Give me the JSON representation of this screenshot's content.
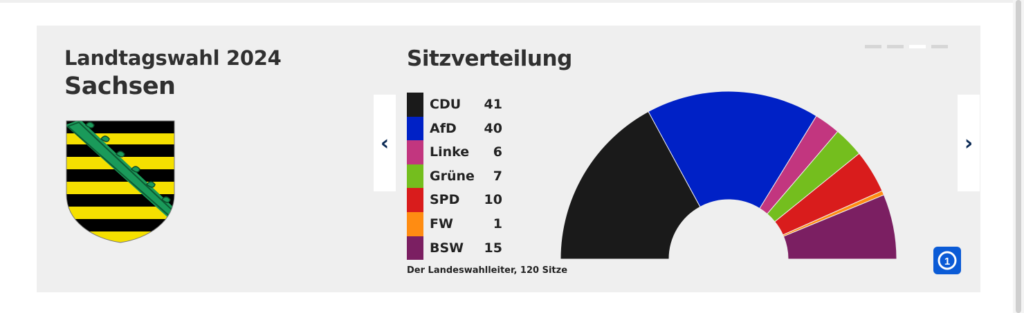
{
  "header": {
    "kicker": "Landtagswahl 2024",
    "state": "Sachsen"
  },
  "coat_of_arms": {
    "icon": "saxony-coat-of-arms",
    "colors": {
      "gold": "#f5e000",
      "black": "#000000",
      "crown": "#1a9a5a"
    }
  },
  "carousel": {
    "prev_label": "‹",
    "next_label": "›",
    "slide_count": 4,
    "active_slide": 3
  },
  "chart_data": {
    "type": "pie",
    "subtype": "parliament-half-donut",
    "title": "Sitzverteilung",
    "total_seats": 120,
    "series": [
      {
        "name": "CDU",
        "value": 41,
        "color": "#1a1a1a"
      },
      {
        "name": "AfD",
        "value": 40,
        "color": "#0021c6"
      },
      {
        "name": "Linke",
        "value": 6,
        "color": "#c2367f"
      },
      {
        "name": "Grüne",
        "value": 7,
        "color": "#74be1e"
      },
      {
        "name": "SPD",
        "value": 10,
        "color": "#d91c1c"
      },
      {
        "name": "FW",
        "value": 1,
        "color": "#ff8c12"
      },
      {
        "name": "BSW",
        "value": 15,
        "color": "#7b1f62"
      }
    ],
    "source": "Der Landeswahlleiter, 120 Sitze"
  },
  "logo": {
    "icon": "tagesschau-logo",
    "text": "1",
    "color": "#0b5bd6"
  }
}
